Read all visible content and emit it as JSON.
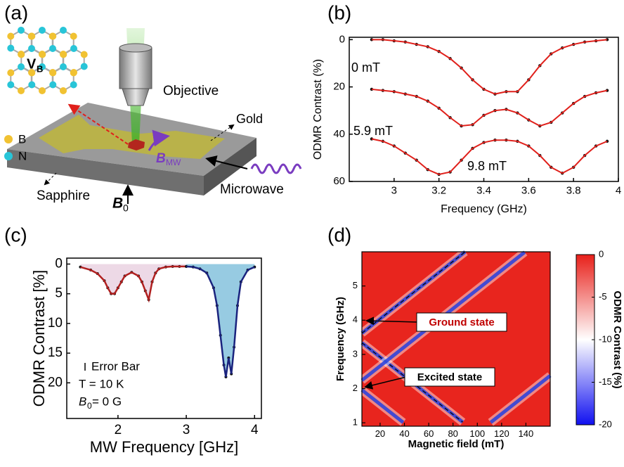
{
  "panel_labels": [
    "(a)",
    "(b)",
    "(c)",
    "(d)"
  ],
  "diagram": {
    "vb": {
      "symbol": "V",
      "sub": "B"
    },
    "objective": "Objective",
    "gold": "Gold",
    "legend": [
      "B",
      "N"
    ],
    "sapphire": "Sapphire",
    "microwave": "Microwave",
    "b0": {
      "symbol": "B",
      "sub": "0"
    },
    "bmw": {
      "symbol": "B",
      "sub": "MW"
    }
  },
  "chart_data": [
    {
      "type": "line",
      "xlabel": "Frequency (GHz)",
      "ylabel": "ODMR Contrast (%)",
      "xlim": [
        2.8,
        4.0
      ],
      "ylim": [
        -1,
        60
      ],
      "y_inverted": true,
      "xticks": [
        3,
        3.2,
        3.4,
        3.6,
        3.8,
        4
      ],
      "yticks": [
        0,
        20,
        40,
        60
      ],
      "marker_color": "#111111",
      "x": [
        2.9,
        2.95,
        3.0,
        3.05,
        3.1,
        3.15,
        3.2,
        3.25,
        3.3,
        3.35,
        3.4,
        3.45,
        3.5,
        3.55,
        3.6,
        3.65,
        3.7,
        3.75,
        3.8,
        3.85,
        3.9,
        3.95
      ],
      "series": [
        {
          "name": "0 mT",
          "color": "#e0201b",
          "values": [
            0,
            0,
            0.5,
            1,
            2,
            3,
            5,
            8,
            12,
            17,
            21,
            23,
            22,
            22,
            17,
            11,
            6,
            3.5,
            2,
            1,
            0.5,
            0
          ]
        },
        {
          "name": "5.9 mT",
          "color": "#e0201b",
          "values": [
            21,
            21.5,
            22,
            23,
            24,
            26,
            29,
            33,
            36.5,
            36,
            32,
            30,
            29.5,
            31,
            34,
            36.5,
            35,
            31,
            27,
            24,
            22.5,
            21.5
          ]
        },
        {
          "name": "9.8 mT",
          "color": "#e0201b",
          "values": [
            42,
            43,
            45,
            48,
            51,
            55,
            57,
            56,
            51,
            46,
            43.5,
            42.5,
            42.5,
            43,
            45,
            49,
            54,
            56.5,
            54,
            49,
            45,
            43
          ]
        }
      ]
    },
    {
      "type": "area",
      "xlabel": "MW Frequency [GHz]",
      "ylabel": "ODMR Contrast [%]",
      "xlim": [
        1.25,
        4.1
      ],
      "ylim": [
        -1,
        26
      ],
      "y_inverted": true,
      "xticks": [
        2,
        3,
        4
      ],
      "yticks": [
        0,
        5,
        10,
        15,
        20
      ],
      "marker_color": "#111111",
      "annotations": [
        "Error Bar",
        "T = 10 K"
      ],
      "b0_label": {
        "symbol": "B",
        "sub": "0",
        "text": " = 0 G"
      },
      "series": [
        {
          "color": "#b02020",
          "fill": "#e9cfe0",
          "x": [
            1.45,
            1.6,
            1.7,
            1.8,
            1.85,
            1.9,
            1.95,
            2.0,
            2.05,
            2.1,
            2.2,
            2.3,
            2.35,
            2.4,
            2.45,
            2.5,
            2.55,
            2.6,
            2.7,
            2.8,
            2.9,
            3.0
          ],
          "values": [
            0.5,
            1,
            1.6,
            2.8,
            4,
            5,
            5,
            4,
            3,
            2,
            1.4,
            2,
            3,
            4.5,
            6,
            3,
            1.5,
            0.8,
            0.5,
            0.4,
            0.4,
            0.4
          ]
        },
        {
          "color": "#1a237e",
          "fill": "#7dbedb",
          "x": [
            3.0,
            3.1,
            3.2,
            3.3,
            3.4,
            3.45,
            3.5,
            3.55,
            3.58,
            3.62,
            3.66,
            3.7,
            3.75,
            3.8,
            3.9,
            4.0
          ],
          "values": [
            0.4,
            0.5,
            0.8,
            1.5,
            4,
            7,
            12,
            17,
            19,
            15.8,
            18.5,
            14,
            7,
            3,
            1,
            0.5
          ]
        }
      ]
    },
    {
      "type": "heatmap-lines",
      "xlabel": "Magnetic field (mT)",
      "ylabel": "Frequency (GHz)",
      "xlim": [
        5,
        160
      ],
      "ylim": [
        0.9,
        6.0
      ],
      "xticks": [
        20,
        40,
        60,
        80,
        100,
        120,
        140
      ],
      "yticks": [
        1,
        2,
        3,
        4,
        5
      ],
      "colorbar_label": "ODMR Contrast (%)",
      "colorlim": [
        -20,
        0
      ],
      "colorticks": [
        0,
        -5,
        -10,
        -15,
        -20
      ],
      "annotations": [
        {
          "text": "Ground state",
          "color": "#c00000"
        },
        {
          "text": "Excited state",
          "color": "#000000"
        }
      ],
      "series": [
        {
          "color": "#2440e0",
          "style": "dashed",
          "x": [
            5,
            90
          ],
          "values": [
            3.62,
            6.0
          ]
        },
        {
          "color": "#2440e0",
          "style": "dashed",
          "x": [
            5,
            88
          ],
          "values": [
            3.34,
            1.02
          ]
        },
        {
          "color": "#2440e0",
          "style": "solid",
          "x": [
            5,
            139
          ],
          "values": [
            2.24,
            5.99
          ]
        },
        {
          "color": "#2440e0",
          "style": "solid",
          "x": [
            5,
            39
          ],
          "values": [
            1.96,
            1.01
          ]
        },
        {
          "color": "#2440e0",
          "style": "solid",
          "x": [
            111,
            160
          ],
          "values": [
            1.01,
            2.38
          ]
        }
      ]
    }
  ]
}
